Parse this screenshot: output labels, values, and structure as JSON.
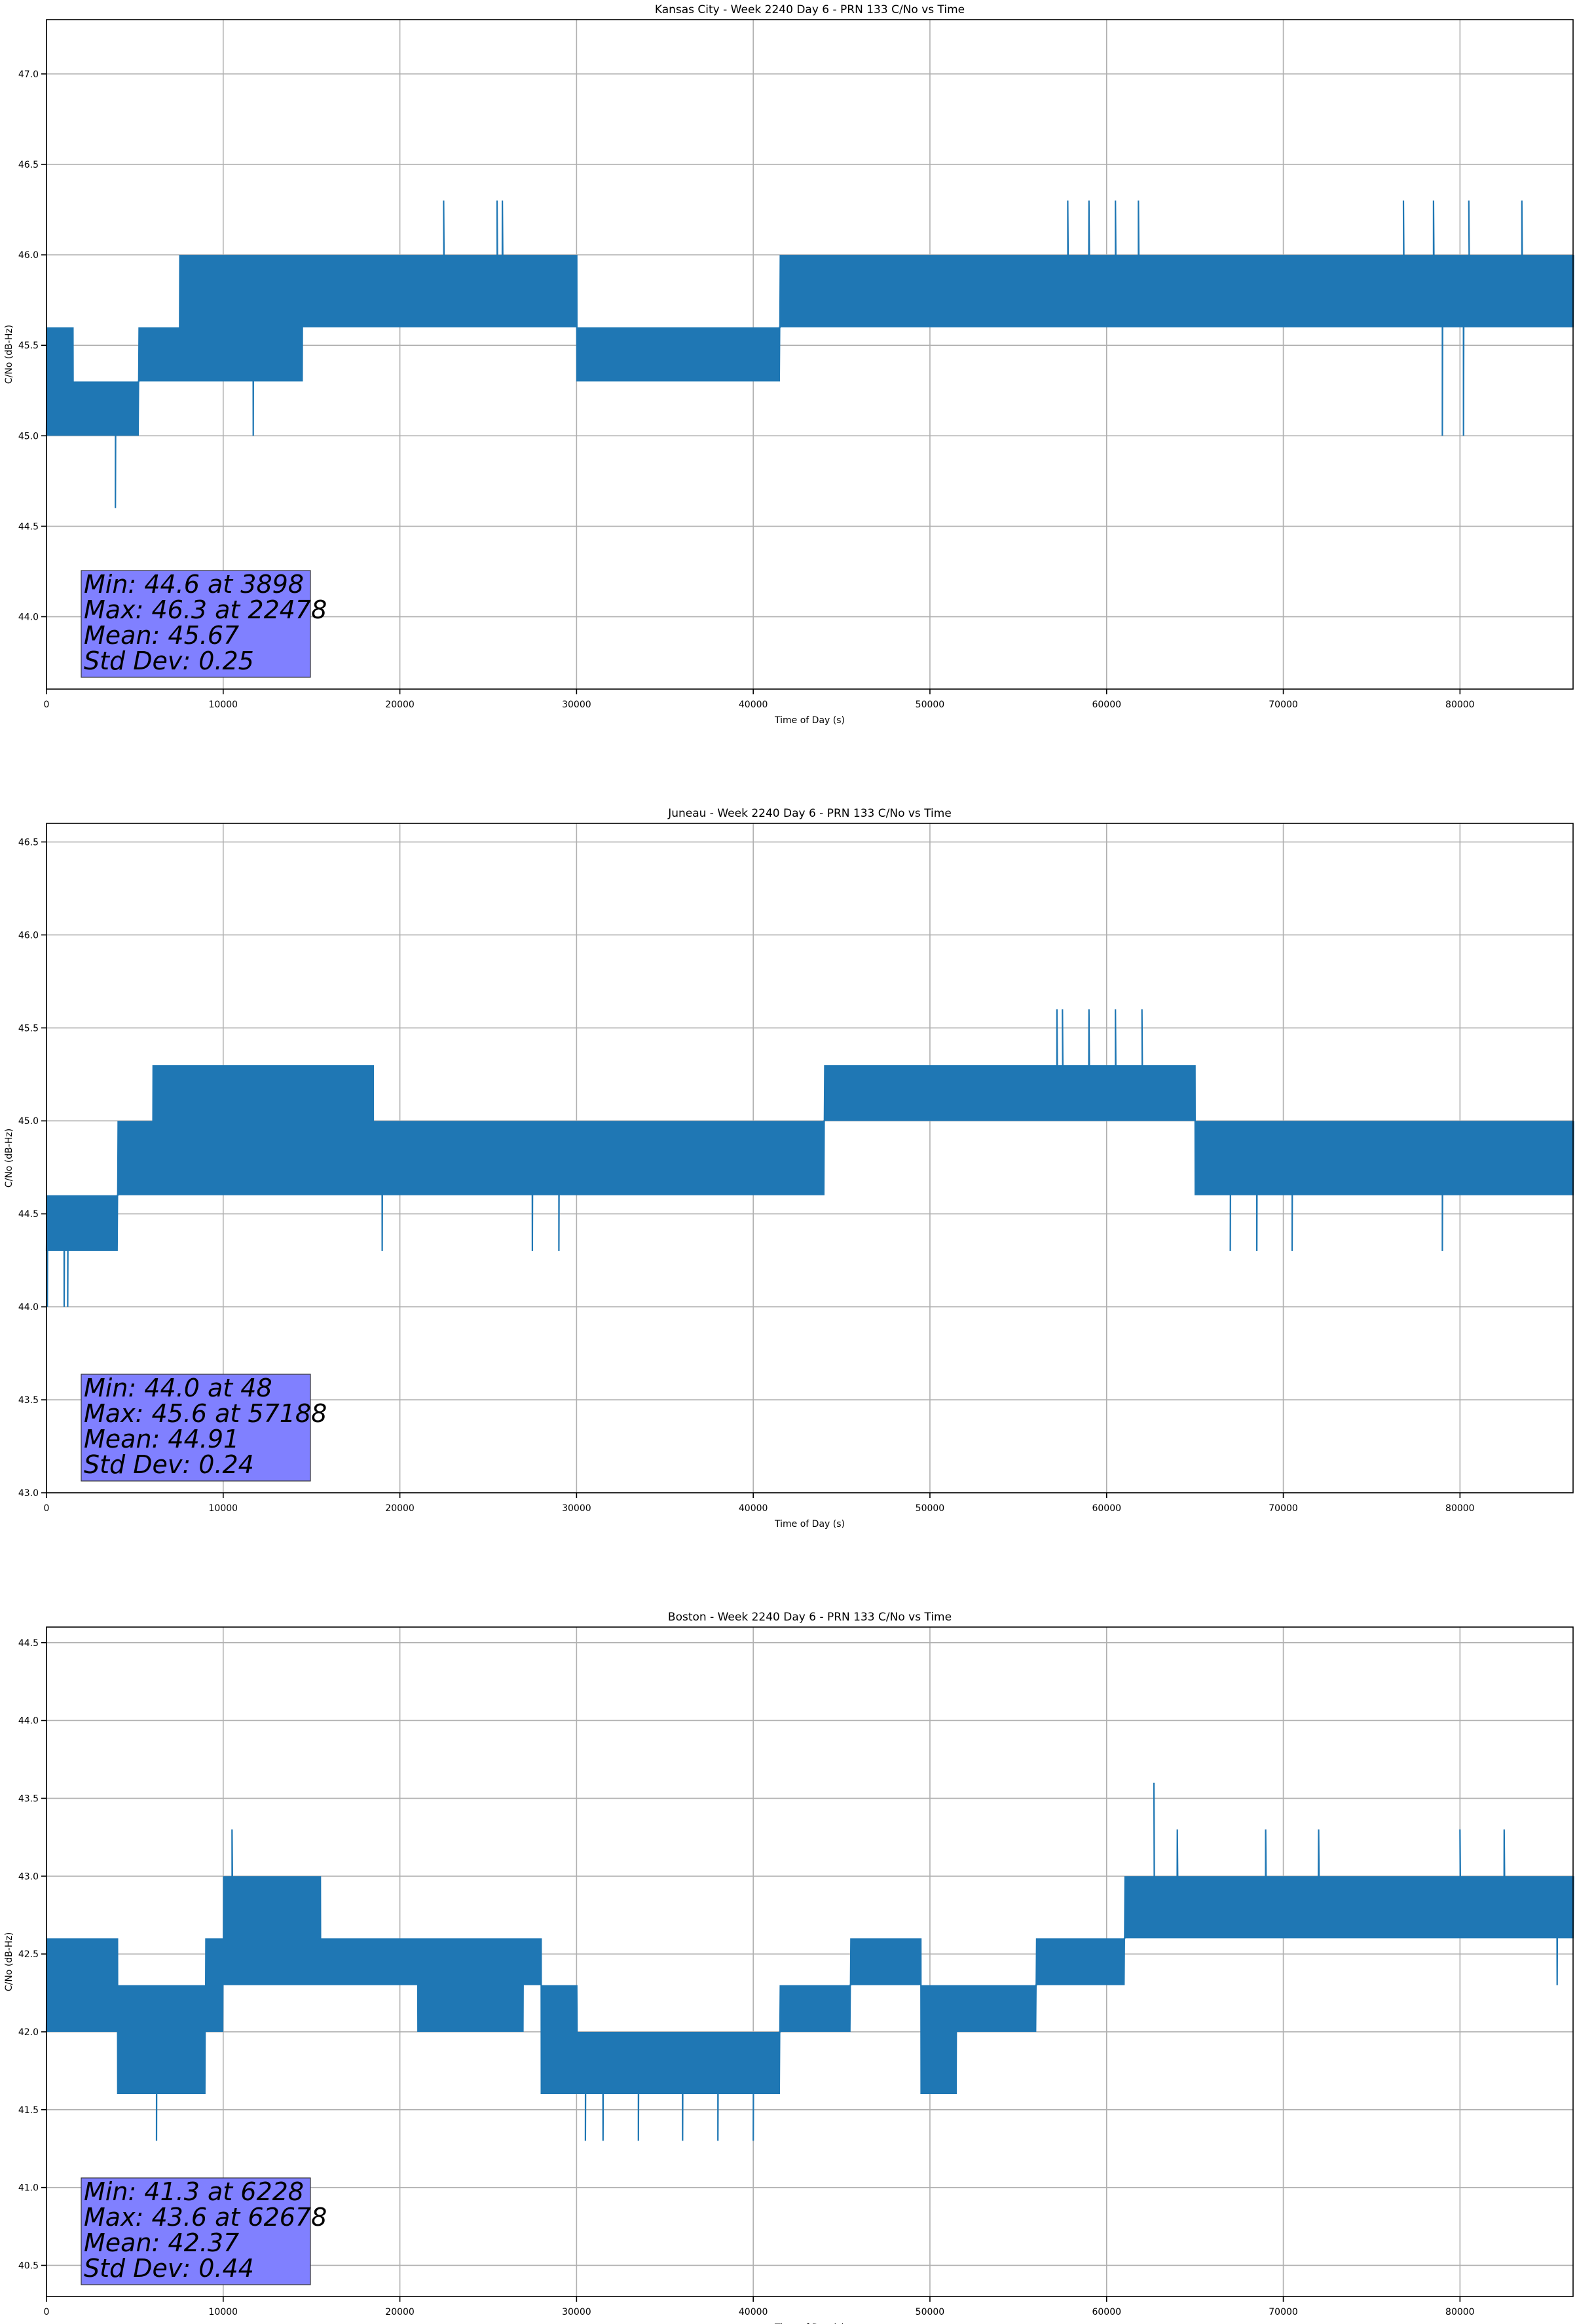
{
  "chart_data": [
    {
      "type": "line",
      "title": "Kansas City - Week 2240 Day 6 - PRN 133 C/No vs Time",
      "xlabel": "Time of Day (s)",
      "ylabel": "C/No (dB-Hz)",
      "xlim": [
        0,
        86400
      ],
      "ylim": [
        43.6,
        47.3
      ],
      "xticks": [
        0,
        10000,
        20000,
        30000,
        40000,
        50000,
        60000,
        70000,
        80000
      ],
      "yticks": [
        44.0,
        44.5,
        45.0,
        45.5,
        46.0,
        46.5,
        47.0
      ],
      "xtick_labels": [
        "0",
        "10000",
        "20000",
        "30000",
        "40000",
        "50000",
        "60000",
        "70000",
        "80000"
      ],
      "ytick_labels": [
        "44.0",
        "44.5",
        "45.0",
        "45.5",
        "46.0",
        "46.5",
        "47.0"
      ],
      "grid": true,
      "color": "#1f77b4",
      "levels": [
        45.0,
        45.3,
        45.6,
        46.0,
        46.3
      ],
      "envelope": [
        {
          "x": 0,
          "low": 45.0,
          "high": 45.6
        },
        {
          "x": 1000,
          "low": 45.0,
          "high": 45.6
        },
        {
          "x": 1500,
          "low": 45.0,
          "high": 45.3
        },
        {
          "x": 4500,
          "low": 45.0,
          "high": 45.3
        },
        {
          "x": 5200,
          "low": 45.3,
          "high": 45.6
        },
        {
          "x": 7500,
          "low": 45.3,
          "high": 46.0
        },
        {
          "x": 14500,
          "low": 45.6,
          "high": 46.0
        },
        {
          "x": 29500,
          "low": 45.6,
          "high": 46.0
        },
        {
          "x": 30000,
          "low": 45.3,
          "high": 45.6
        },
        {
          "x": 41000,
          "low": 45.3,
          "high": 45.6
        },
        {
          "x": 41500,
          "low": 45.6,
          "high": 46.0
        },
        {
          "x": 76000,
          "low": 45.6,
          "high": 46.0
        },
        {
          "x": 86400,
          "low": 45.6,
          "high": 46.0
        }
      ],
      "spikes": [
        {
          "x": 3898,
          "y": 44.6
        },
        {
          "x": 11700,
          "y": 45.0
        },
        {
          "x": 22478,
          "y": 46.3
        },
        {
          "x": 25500,
          "y": 46.3
        },
        {
          "x": 25800,
          "y": 46.3
        },
        {
          "x": 57800,
          "y": 46.3
        },
        {
          "x": 59000,
          "y": 46.3
        },
        {
          "x": 60500,
          "y": 46.3
        },
        {
          "x": 61800,
          "y": 46.3
        },
        {
          "x": 76800,
          "y": 46.3
        },
        {
          "x": 78500,
          "y": 46.3
        },
        {
          "x": 80500,
          "y": 46.3
        },
        {
          "x": 83500,
          "y": 46.3
        },
        {
          "x": 79000,
          "y": 45.0
        },
        {
          "x": 80200,
          "y": 45.0
        }
      ],
      "stats": {
        "min_text": "Min: 44.6 at 3898",
        "max_text": "Max: 46.3 at 22478",
        "mean_text": "Mean: 45.67",
        "std_text": "Std Dev: 0.25",
        "box_color": "#8080ff"
      }
    },
    {
      "type": "line",
      "title": "Juneau - Week 2240 Day 6 - PRN 133 C/No vs Time",
      "xlabel": "Time of Day (s)",
      "ylabel": "C/No (dB-Hz)",
      "xlim": [
        0,
        86400
      ],
      "ylim": [
        43.0,
        46.6
      ],
      "xticks": [
        0,
        10000,
        20000,
        30000,
        40000,
        50000,
        60000,
        70000,
        80000
      ],
      "yticks": [
        43.0,
        43.5,
        44.0,
        44.5,
        45.0,
        45.5,
        46.0,
        46.5
      ],
      "xtick_labels": [
        "0",
        "10000",
        "20000",
        "30000",
        "40000",
        "50000",
        "60000",
        "70000",
        "80000"
      ],
      "ytick_labels": [
        "43.0",
        "43.5",
        "44.0",
        "44.5",
        "45.0",
        "45.5",
        "46.0",
        "46.5"
      ],
      "grid": true,
      "color": "#1f77b4",
      "levels": [
        44.0,
        44.3,
        44.6,
        45.0,
        45.3
      ],
      "envelope": [
        {
          "x": 0,
          "low": 44.3,
          "high": 44.6
        },
        {
          "x": 3500,
          "low": 44.3,
          "high": 44.6
        },
        {
          "x": 4000,
          "low": 44.6,
          "high": 45.0
        },
        {
          "x": 6000,
          "low": 44.6,
          "high": 45.3
        },
        {
          "x": 18000,
          "low": 44.6,
          "high": 45.3
        },
        {
          "x": 18500,
          "low": 44.6,
          "high": 45.0
        },
        {
          "x": 43500,
          "low": 44.6,
          "high": 45.0
        },
        {
          "x": 44000,
          "low": 45.0,
          "high": 45.3
        },
        {
          "x": 62500,
          "low": 45.0,
          "high": 45.3
        },
        {
          "x": 65000,
          "low": 44.6,
          "high": 45.0
        },
        {
          "x": 73000,
          "low": 44.6,
          "high": 45.0
        },
        {
          "x": 86400,
          "low": 44.6,
          "high": 45.0
        }
      ],
      "spikes": [
        {
          "x": 48,
          "y": 44.0
        },
        {
          "x": 1000,
          "y": 44.0
        },
        {
          "x": 1200,
          "y": 44.0
        },
        {
          "x": 19000,
          "y": 44.3
        },
        {
          "x": 27500,
          "y": 44.3
        },
        {
          "x": 29000,
          "y": 44.3
        },
        {
          "x": 57188,
          "y": 45.6
        },
        {
          "x": 57500,
          "y": 45.6
        },
        {
          "x": 59000,
          "y": 45.6
        },
        {
          "x": 60500,
          "y": 45.6
        },
        {
          "x": 62000,
          "y": 45.6
        },
        {
          "x": 67000,
          "y": 44.3
        },
        {
          "x": 68500,
          "y": 44.3
        },
        {
          "x": 70500,
          "y": 44.3
        },
        {
          "x": 79000,
          "y": 44.3
        }
      ],
      "stats": {
        "min_text": "Min: 44.0 at 48",
        "max_text": "Max: 45.6 at 57188",
        "mean_text": "Mean: 44.91",
        "std_text": "Std Dev: 0.24",
        "box_color": "#8080ff"
      }
    },
    {
      "type": "line",
      "title": "Boston - Week 2240 Day 6 - PRN 133 C/No vs Time",
      "xlabel": "Time of Day (s)",
      "ylabel": "C/No (dB-Hz)",
      "xlim": [
        0,
        86400
      ],
      "ylim": [
        40.3,
        44.6
      ],
      "xticks": [
        0,
        10000,
        20000,
        30000,
        40000,
        50000,
        60000,
        70000,
        80000
      ],
      "yticks": [
        40.5,
        41.0,
        41.5,
        42.0,
        42.5,
        43.0,
        43.5,
        44.0,
        44.5
      ],
      "xtick_labels": [
        "0",
        "10000",
        "20000",
        "30000",
        "40000",
        "50000",
        "60000",
        "70000",
        "80000"
      ],
      "ytick_labels": [
        "40.5",
        "41.0",
        "41.5",
        "42.0",
        "42.5",
        "43.0",
        "43.5",
        "44.0",
        "44.5"
      ],
      "grid": true,
      "color": "#1f77b4",
      "levels": [
        41.3,
        41.6,
        42.0,
        42.3,
        42.6,
        43.0,
        43.3
      ],
      "envelope": [
        {
          "x": 0,
          "low": 42.0,
          "high": 42.6
        },
        {
          "x": 4000,
          "low": 41.6,
          "high": 42.3
        },
        {
          "x": 9000,
          "low": 42.0,
          "high": 42.6
        },
        {
          "x": 10000,
          "low": 42.3,
          "high": 43.0
        },
        {
          "x": 15500,
          "low": 42.3,
          "high": 42.6
        },
        {
          "x": 20500,
          "low": 42.3,
          "high": 42.6
        },
        {
          "x": 21000,
          "low": 42.0,
          "high": 42.6
        },
        {
          "x": 27000,
          "low": 42.3,
          "high": 42.6
        },
        {
          "x": 28000,
          "low": 41.6,
          "high": 42.3
        },
        {
          "x": 30000,
          "low": 41.6,
          "high": 42.0
        },
        {
          "x": 41000,
          "low": 41.6,
          "high": 42.0
        },
        {
          "x": 41500,
          "low": 42.0,
          "high": 42.3
        },
        {
          "x": 45500,
          "low": 42.3,
          "high": 42.6
        },
        {
          "x": 47000,
          "low": 42.3,
          "high": 42.6
        },
        {
          "x": 49500,
          "low": 41.6,
          "high": 42.3
        },
        {
          "x": 51500,
          "low": 42.0,
          "high": 42.3
        },
        {
          "x": 55000,
          "low": 42.0,
          "high": 42.3
        },
        {
          "x": 56000,
          "low": 42.3,
          "high": 42.6
        },
        {
          "x": 60000,
          "low": 42.3,
          "high": 42.6
        },
        {
          "x": 61000,
          "low": 42.6,
          "high": 43.0
        },
        {
          "x": 86400,
          "low": 42.6,
          "high": 43.0
        }
      ],
      "spikes": [
        {
          "x": 6228,
          "y": 41.3
        },
        {
          "x": 10500,
          "y": 43.3
        },
        {
          "x": 30500,
          "y": 41.3
        },
        {
          "x": 31500,
          "y": 41.3
        },
        {
          "x": 33500,
          "y": 41.3
        },
        {
          "x": 36000,
          "y": 41.3
        },
        {
          "x": 38000,
          "y": 41.3
        },
        {
          "x": 40000,
          "y": 41.3
        },
        {
          "x": 62678,
          "y": 43.6
        },
        {
          "x": 64000,
          "y": 43.3
        },
        {
          "x": 69000,
          "y": 43.3
        },
        {
          "x": 72000,
          "y": 43.3
        },
        {
          "x": 80000,
          "y": 43.3
        },
        {
          "x": 82500,
          "y": 43.3
        },
        {
          "x": 85500,
          "y": 42.3
        }
      ],
      "stats": {
        "min_text": "Min: 41.3 at 6228",
        "max_text": "Max: 43.6 at 62678",
        "mean_text": "Mean: 42.37",
        "std_text": "Std Dev: 0.44",
        "box_color": "#8080ff"
      }
    }
  ]
}
